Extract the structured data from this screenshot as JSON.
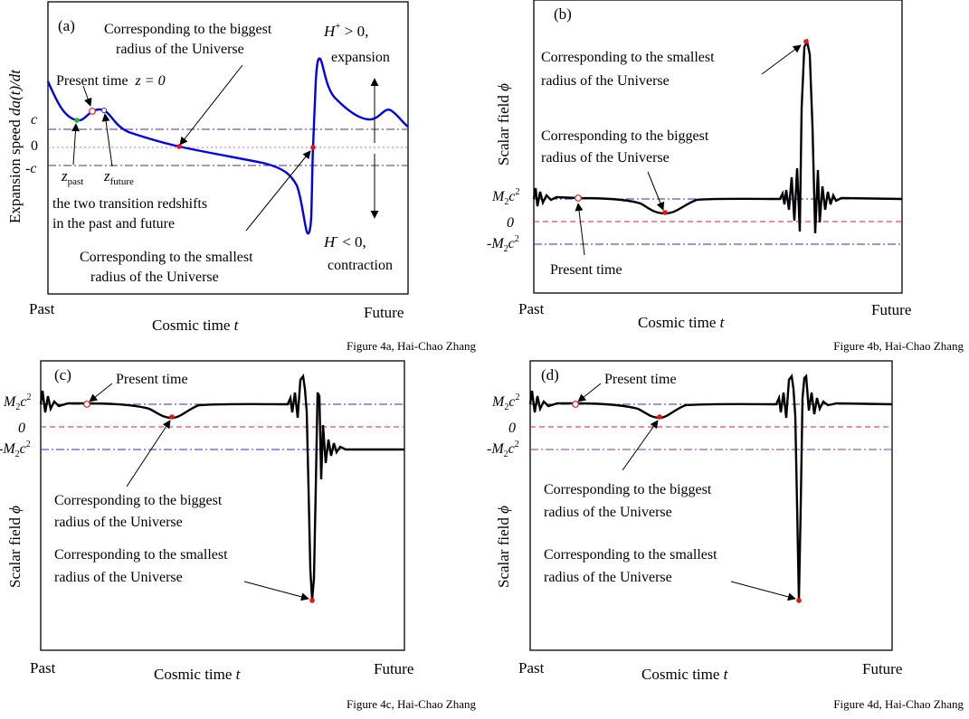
{
  "colors": {
    "frame": "#000000",
    "curve_a": "#0000ee",
    "curve_bcd": "#000000",
    "c_line": "#5a2a82",
    "zero_line_a": "#e060e0",
    "zero_line": "#e02020",
    "m2c2_line": "#2030c0",
    "neg_m2c2_line_d": "#7a3a8a",
    "point_red": "#ee1111",
    "point_green": "#22bb22",
    "point_open_red": "#ee2222",
    "point_open_blue": "#3333cc"
  },
  "panels": {
    "a": {
      "tag": "(a)",
      "ylabel_prefix": "Expansion speed ",
      "ylabel_math": "da(t)/dt",
      "xlabel_prefix": "Cosmic time ",
      "xlabel_math": "t",
      "past": "Past",
      "future": "Future",
      "caption": "Figure 4a, Hai-Chao Zhang",
      "tick_c": "c",
      "tick_zero": "0",
      "tick_neg_c": "-c",
      "biggest_line1": "Corresponding to the biggest",
      "biggest_line2": "radius of the Universe",
      "present": "Present time",
      "present_math": "z = 0",
      "zpast_z": "z",
      "zpast_sub": "past",
      "zfuture_z": "z",
      "zfuture_sub": "future",
      "transition_line1": "the two transition redshifts",
      "transition_line2": "in the past and future",
      "smallest_line1": "Corresponding to the smallest",
      "smallest_line2": "radius of the Universe",
      "hplus_h": "H",
      "hplus_sup": "+",
      "hplus_rest": " > 0,",
      "expansion": "expansion",
      "hminus_h": "H",
      "hminus_sup": "-",
      "hminus_rest": " < 0,",
      "contraction": "contraction"
    },
    "b": {
      "tag": "(b)",
      "ylabel_prefix": "Scalar field ",
      "ylabel_math": "ϕ",
      "xlabel_prefix": "Cosmic time ",
      "xlabel_math": "t",
      "past": "Past",
      "future": "Future",
      "caption": "Figure 4b, Hai-Chao Zhang",
      "tick_m2c2": "M",
      "tick_zero": "0",
      "tick_neg": "-M",
      "smallest_line1": "Corresponding to the smallest",
      "smallest_line2": "radius of the Universe",
      "biggest_line1": "Corresponding to the biggest",
      "biggest_line2": "radius of the Universe",
      "present": "Present time"
    },
    "c": {
      "tag": "(c)",
      "ylabel_prefix": "Scalar field ",
      "ylabel_math": "ϕ",
      "xlabel_prefix": "Cosmic time ",
      "xlabel_math": "t",
      "past": "Past",
      "future": "Future",
      "caption": "Figure 4c, Hai-Chao Zhang",
      "tick_m2c2": "M",
      "tick_zero": "0",
      "tick_neg": "-M",
      "present": "Present time",
      "biggest_line1": "Corresponding to the biggest",
      "biggest_line2": "radius of the Universe",
      "smallest_line1": "Corresponding to the smallest",
      "smallest_line2": "radius of the Universe"
    },
    "d": {
      "tag": "(d)",
      "ylabel_prefix": "Scalar field ",
      "ylabel_math": "ϕ",
      "xlabel_prefix": "Cosmic time ",
      "xlabel_math": "t",
      "past": "Past",
      "future": "Future",
      "caption": "Figure 4d, Hai-Chao Zhang",
      "tick_m2c2": "M",
      "tick_zero": "0",
      "tick_neg": "-M",
      "present": "Present time",
      "biggest_line1": "Corresponding to the biggest",
      "biggest_line2": "radius of the Universe",
      "smallest_line1": "Corresponding to the smallest",
      "smallest_line2": "radius of the Universe"
    }
  }
}
